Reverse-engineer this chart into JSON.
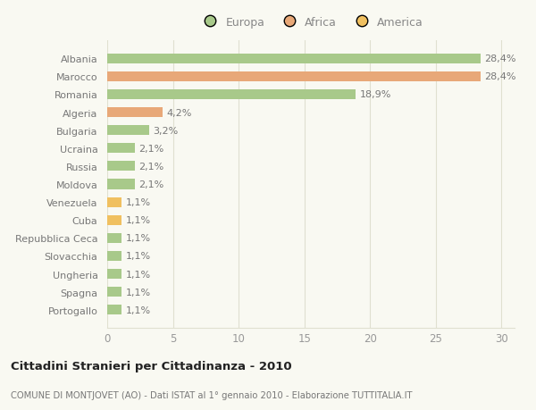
{
  "categories": [
    "Portogallo",
    "Spagna",
    "Ungheria",
    "Slovacchia",
    "Repubblica Ceca",
    "Cuba",
    "Venezuela",
    "Moldova",
    "Russia",
    "Ucraina",
    "Bulgaria",
    "Algeria",
    "Romania",
    "Marocco",
    "Albania"
  ],
  "values": [
    1.1,
    1.1,
    1.1,
    1.1,
    1.1,
    1.1,
    1.1,
    2.1,
    2.1,
    2.1,
    3.2,
    4.2,
    18.9,
    28.4,
    28.4
  ],
  "colors": [
    "#a8c98a",
    "#a8c98a",
    "#a8c98a",
    "#a8c98a",
    "#a8c98a",
    "#f0c060",
    "#f0c060",
    "#a8c98a",
    "#a8c98a",
    "#a8c98a",
    "#a8c98a",
    "#e8a878",
    "#a8c98a",
    "#e8a878",
    "#a8c98a"
  ],
  "labels": [
    "1,1%",
    "1,1%",
    "1,1%",
    "1,1%",
    "1,1%",
    "1,1%",
    "1,1%",
    "2,1%",
    "2,1%",
    "2,1%",
    "3,2%",
    "4,2%",
    "18,9%",
    "28,4%",
    "28,4%"
  ],
  "legend": [
    {
      "label": "Europa",
      "color": "#a8c98a"
    },
    {
      "label": "Africa",
      "color": "#e8a878"
    },
    {
      "label": "America",
      "color": "#f0c060"
    }
  ],
  "title": "Cittadini Stranieri per Cittadinanza - 2010",
  "subtitle": "COMUNE DI MONTJOVET (AO) - Dati ISTAT al 1° gennaio 2010 - Elaborazione TUTTITALIA.IT",
  "xlim": [
    0,
    31
  ],
  "xticks": [
    0,
    5,
    10,
    15,
    20,
    25,
    30
  ],
  "background_color": "#f9f9f2",
  "grid_color": "#e0e0d0",
  "bar_height": 0.55,
  "label_fontsize": 8,
  "ytick_fontsize": 8,
  "xtick_fontsize": 8.5,
  "label_color": "#777777",
  "ytick_color": "#777777",
  "xtick_color": "#999999"
}
